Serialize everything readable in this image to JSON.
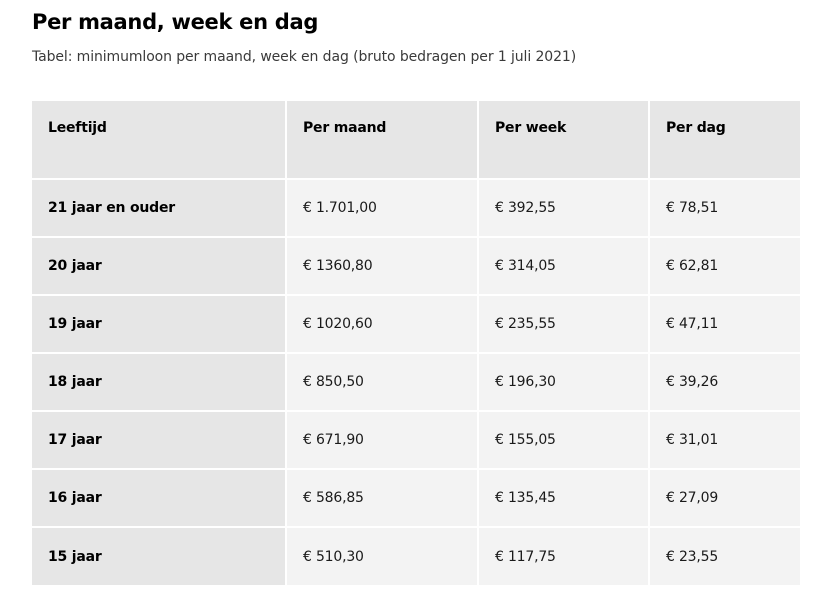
{
  "heading": "Per maand, week en dag",
  "caption": "Tabel: minimumloon per maand, week en dag (bruto bedragen per 1 juli 2021)",
  "table": {
    "headers": [
      "Leeftijd",
      "Per maand",
      "Per week",
      "Per dag"
    ],
    "rows": [
      [
        "21 jaar en ouder",
        "€ 1.701,00",
        "€ 392,55",
        "€ 78,51"
      ],
      [
        "20 jaar",
        "€ 1360,80",
        "€ 314,05",
        "€ 62,81"
      ],
      [
        "19 jaar",
        "€ 1020,60",
        "€ 235,55",
        "€ 47,11"
      ],
      [
        "18 jaar",
        "€ 850,50",
        "€ 196,30",
        "€ 39,26"
      ],
      [
        "17 jaar",
        "€ 671,90",
        "€ 155,05",
        "€ 31,01"
      ],
      [
        "16 jaar",
        "€ 586,85",
        "€ 135,45",
        "€ 27,09"
      ],
      [
        "15 jaar",
        "€ 510,30",
        "€ 117,75",
        "€ 23,55"
      ]
    ]
  },
  "colors": {
    "header_bg": "#e6e6e6",
    "cell_bg": "#f3f3f3",
    "caption_text": "#3a3a3a"
  }
}
